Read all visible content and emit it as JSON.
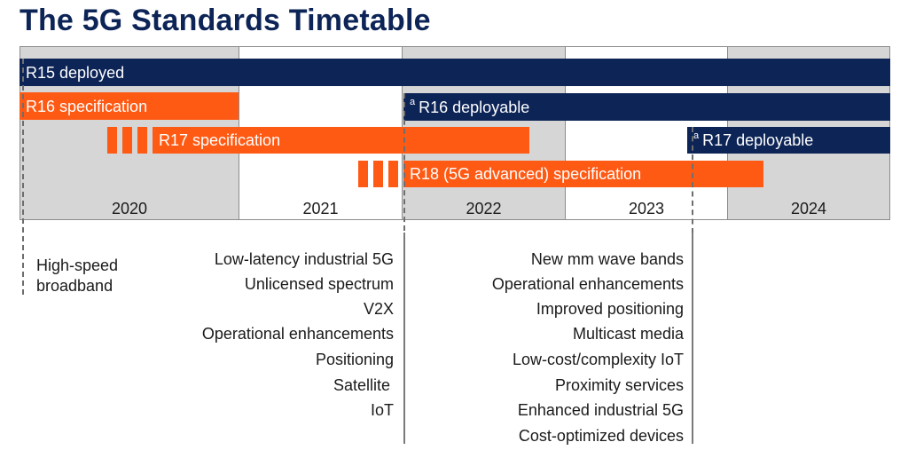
{
  "title": "The 5G Standards Timetable",
  "years": [
    "2020",
    "2021",
    "2022",
    "2023",
    "2024"
  ],
  "bars": {
    "r15_deployed": "R15 deployed",
    "r16_specification": "R16 specification",
    "r16_deployable": "R16 deployable",
    "r17_specification": "R17 specification",
    "r17_deployable": "R17 deployable",
    "r18_specification": "R18 (5G advanced) specification",
    "footnote_mark": "a"
  },
  "notes": {
    "r15_features": [
      "High-speed",
      "broadband"
    ],
    "r16_features": [
      "Low-latency industrial 5G",
      "Unlicensed spectrum",
      "V2X",
      "Operational enhancements",
      "Positioning",
      "Satellite",
      "IoT"
    ],
    "r17_features": [
      "New mm wave bands",
      "Operational enhancements",
      "Improved positioning",
      "Multicast media",
      "Low-cost/complexity IoT",
      "Proximity services",
      "Enhanced industrial 5G",
      "Cost-optimized devices"
    ]
  },
  "colors": {
    "navy": "#0d2456",
    "orange": "#ff5a14",
    "shade": "#d6d6d6"
  }
}
